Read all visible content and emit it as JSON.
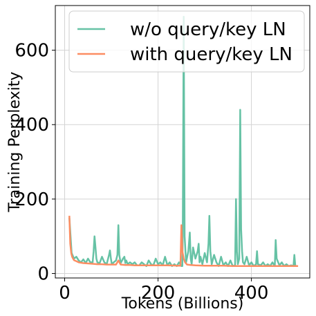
{
  "chart_data": {
    "type": "line",
    "title": "",
    "xlabel": "Tokens (Billions)",
    "ylabel": "Training Perplexity",
    "xlim": [
      -20,
      525
    ],
    "ylim": [
      -12,
      720
    ],
    "xticks": [
      0,
      200,
      400
    ],
    "yticks": [
      0,
      200,
      400,
      600
    ],
    "grid": true,
    "legend_position": "top-right",
    "series": [
      {
        "name": "w/o query/key LN",
        "color": "#66c2a5",
        "x": [
          10,
          15,
          20,
          25,
          30,
          35,
          40,
          45,
          50,
          55,
          60,
          62,
          64,
          66,
          68,
          70,
          75,
          80,
          85,
          90,
          95,
          97,
          99,
          101,
          105,
          110,
          113,
          115,
          117,
          120,
          125,
          128,
          130,
          132,
          135,
          140,
          145,
          150,
          155,
          160,
          165,
          170,
          175,
          180,
          185,
          190,
          195,
          200,
          205,
          210,
          215,
          220,
          225,
          230,
          235,
          240,
          245,
          250,
          252,
          253,
          255,
          257,
          260,
          265,
          268,
          270,
          272,
          275,
          280,
          285,
          287,
          289,
          291,
          295,
          300,
          305,
          308,
          310,
          312,
          315,
          320,
          325,
          330,
          335,
          340,
          345,
          350,
          355,
          360,
          365,
          367,
          369,
          371,
          374,
          376,
          378,
          380,
          382,
          385,
          390,
          395,
          400,
          405,
          410,
          412,
          414,
          420,
          425,
          430,
          435,
          440,
          445,
          450,
          452,
          454,
          460,
          465,
          470,
          475,
          480,
          485,
          490,
          492,
          494,
          498
        ],
        "y": [
          150,
          55,
          40,
          45,
          35,
          30,
          38,
          28,
          40,
          30,
          30,
          60,
          100,
          70,
          40,
          30,
          28,
          45,
          30,
          25,
          50,
          62,
          40,
          25,
          30,
          35,
          50,
          130,
          50,
          28,
          40,
          45,
          28,
          35,
          25,
          30,
          25,
          30,
          22,
          22,
          30,
          25,
          20,
          35,
          25,
          22,
          40,
          25,
          30,
          22,
          45,
          22,
          30,
          20,
          25,
          20,
          30,
          20,
          20,
          100,
          690,
          100,
          30,
          60,
          110,
          40,
          25,
          70,
          40,
          60,
          80,
          30,
          45,
          25,
          55,
          30,
          80,
          155,
          60,
          25,
          50,
          30,
          20,
          45,
          22,
          30,
          20,
          35,
          20,
          22,
          200,
          60,
          25,
          40,
          440,
          120,
          60,
          30,
          25,
          45,
          22,
          30,
          20,
          25,
          60,
          25,
          22,
          30,
          20,
          25,
          20,
          30,
          20,
          90,
          40,
          22,
          30,
          20,
          25,
          20,
          22,
          20,
          50,
          20,
          20
        ]
      },
      {
        "name": "with query/key LN",
        "color": "#fc8d62",
        "x": [
          10,
          12,
          14,
          16,
          18,
          20,
          25,
          30,
          40,
          50,
          60,
          70,
          80,
          90,
          100,
          110,
          115,
          120,
          130,
          140,
          150,
          160,
          180,
          200,
          220,
          240,
          248,
          250,
          252,
          255,
          258,
          262,
          270,
          280,
          300,
          320,
          340,
          360,
          380,
          400,
          420,
          440,
          460,
          480,
          500
        ],
        "y": [
          155,
          80,
          55,
          45,
          40,
          36,
          33,
          30,
          28,
          27,
          26,
          25,
          25,
          24,
          24,
          24,
          35,
          24,
          23,
          23,
          22,
          22,
          22,
          22,
          22,
          21,
          21,
          130,
          60,
          40,
          30,
          24,
          23,
          22,
          21,
          21,
          21,
          20,
          20,
          20,
          20,
          20,
          20,
          20,
          20
        ]
      }
    ]
  }
}
